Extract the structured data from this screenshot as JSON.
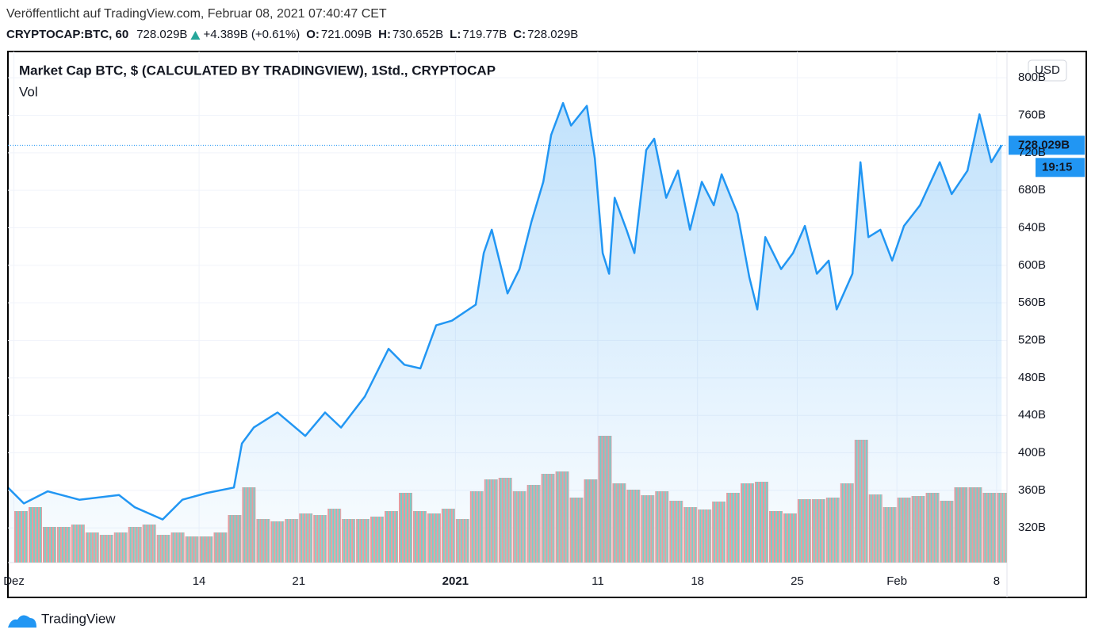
{
  "header": {
    "published": "Veröffentlicht auf TradingView.com, Februar 08, 2021 07:40:47 CET",
    "symbol": "CRYPTOCAP:BTC, 60",
    "last": "728.029B",
    "change": "+4.389B (+0.61%)",
    "o_label": "O:",
    "o": "721.009B",
    "h_label": "H:",
    "h": "730.652B",
    "l_label": "L:",
    "l": "719.77B",
    "c_label": "C:",
    "c": "728.029B"
  },
  "chart_data": {
    "type": "area",
    "title": "Market Cap BTC, $ (CALCULATED BY TRADINGVIEW), 1Std., CRYPTOCAP",
    "currency": "USD",
    "price_label": "728.029B",
    "countdown": "19:15",
    "xlim": [
      -0.42,
      69.73
    ],
    "xticks": [
      {
        "value": 0,
        "label": "Dez"
      },
      {
        "value": 13,
        "label": "14"
      },
      {
        "value": 20,
        "label": "21"
      },
      {
        "value": 31,
        "label": "2021"
      },
      {
        "value": 41,
        "label": "11"
      },
      {
        "value": 48,
        "label": "18"
      },
      {
        "value": 55,
        "label": "25"
      },
      {
        "value": 62,
        "label": "Feb"
      },
      {
        "value": 69,
        "label": "8"
      }
    ],
    "ylim": [
      283,
      828
    ],
    "yticks": [
      {
        "value": 320,
        "label": "320B"
      },
      {
        "value": 360,
        "label": "360B"
      },
      {
        "value": 400,
        "label": "400B"
      },
      {
        "value": 440,
        "label": "440B"
      },
      {
        "value": 480,
        "label": "480B"
      },
      {
        "value": 520,
        "label": "520B"
      },
      {
        "value": 560,
        "label": "560B"
      },
      {
        "value": 600,
        "label": "600B"
      },
      {
        "value": 640,
        "label": "640B"
      },
      {
        "value": 680,
        "label": "680B"
      },
      {
        "value": 720,
        "label": "720B"
      },
      {
        "value": 760,
        "label": "760B"
      },
      {
        "value": 800,
        "label": "800B"
      }
    ],
    "grid": true,
    "series": [
      {
        "name": "Market Cap BTC",
        "color": "#2196f3",
        "x": [
          -0.42,
          0.7,
          2.37,
          4.59,
          7.38,
          8.49,
          10.44,
          11.83,
          13.5,
          15.45,
          16.01,
          16.84,
          18.51,
          20.46,
          21.85,
          22.97,
          24.64,
          26.31,
          27.42,
          28.54,
          29.65,
          30.76,
          32.43,
          32.99,
          33.55,
          34.66,
          35.5,
          36.33,
          37.17,
          37.72,
          38.56,
          39.12,
          40.23,
          40.79,
          41.34,
          41.79,
          42.18,
          43.01,
          43.57,
          44.4,
          44.96,
          45.8,
          46.63,
          47.47,
          48.3,
          49.14,
          49.69,
          50.81,
          51.64,
          52.2,
          52.76,
          53.87,
          54.71,
          55.54,
          56.38,
          57.21,
          57.77,
          58.88,
          59.44,
          60.0,
          60.84,
          61.67,
          62.5,
          63.62,
          65.01,
          65.85,
          66.96,
          67.8,
          68.63,
          69.35
        ],
        "values": [
          363,
          346,
          359,
          350,
          355,
          342,
          329,
          350,
          357,
          363,
          410,
          427,
          443,
          418,
          443,
          427,
          460,
          511,
          494,
          490,
          536,
          541,
          558,
          613,
          638,
          570,
          596,
          646,
          689,
          739,
          773,
          749,
          770,
          714,
          613,
          591,
          672,
          638,
          613,
          723,
          735,
          672,
          701,
          638,
          689,
          664,
          697,
          655,
          587,
          553,
          630,
          596,
          613,
          642,
          591,
          605,
          553,
          591,
          710,
          630,
          638,
          605,
          642,
          664,
          710,
          676,
          701,
          761,
          710,
          728.029
        ]
      },
      {
        "name": "Vol",
        "colors": [
          "#f19a9a",
          "#7fcfc4"
        ],
        "values": [
          65,
          70,
          45,
          45,
          48,
          38,
          35,
          38,
          45,
          48,
          35,
          38,
          33,
          33,
          38,
          60,
          95,
          55,
          52,
          55,
          62,
          60,
          68,
          55,
          55,
          58,
          65,
          88,
          65,
          62,
          68,
          55,
          90,
          105,
          107,
          90,
          98,
          112,
          115,
          82,
          105,
          160,
          100,
          92,
          85,
          90,
          78,
          70,
          67,
          77,
          88,
          100,
          102,
          65,
          62,
          80,
          80,
          82,
          100,
          155,
          86,
          70,
          82,
          84,
          88,
          78,
          95,
          95,
          88,
          88
        ]
      }
    ]
  },
  "footer": {
    "brand": "TradingView"
  }
}
